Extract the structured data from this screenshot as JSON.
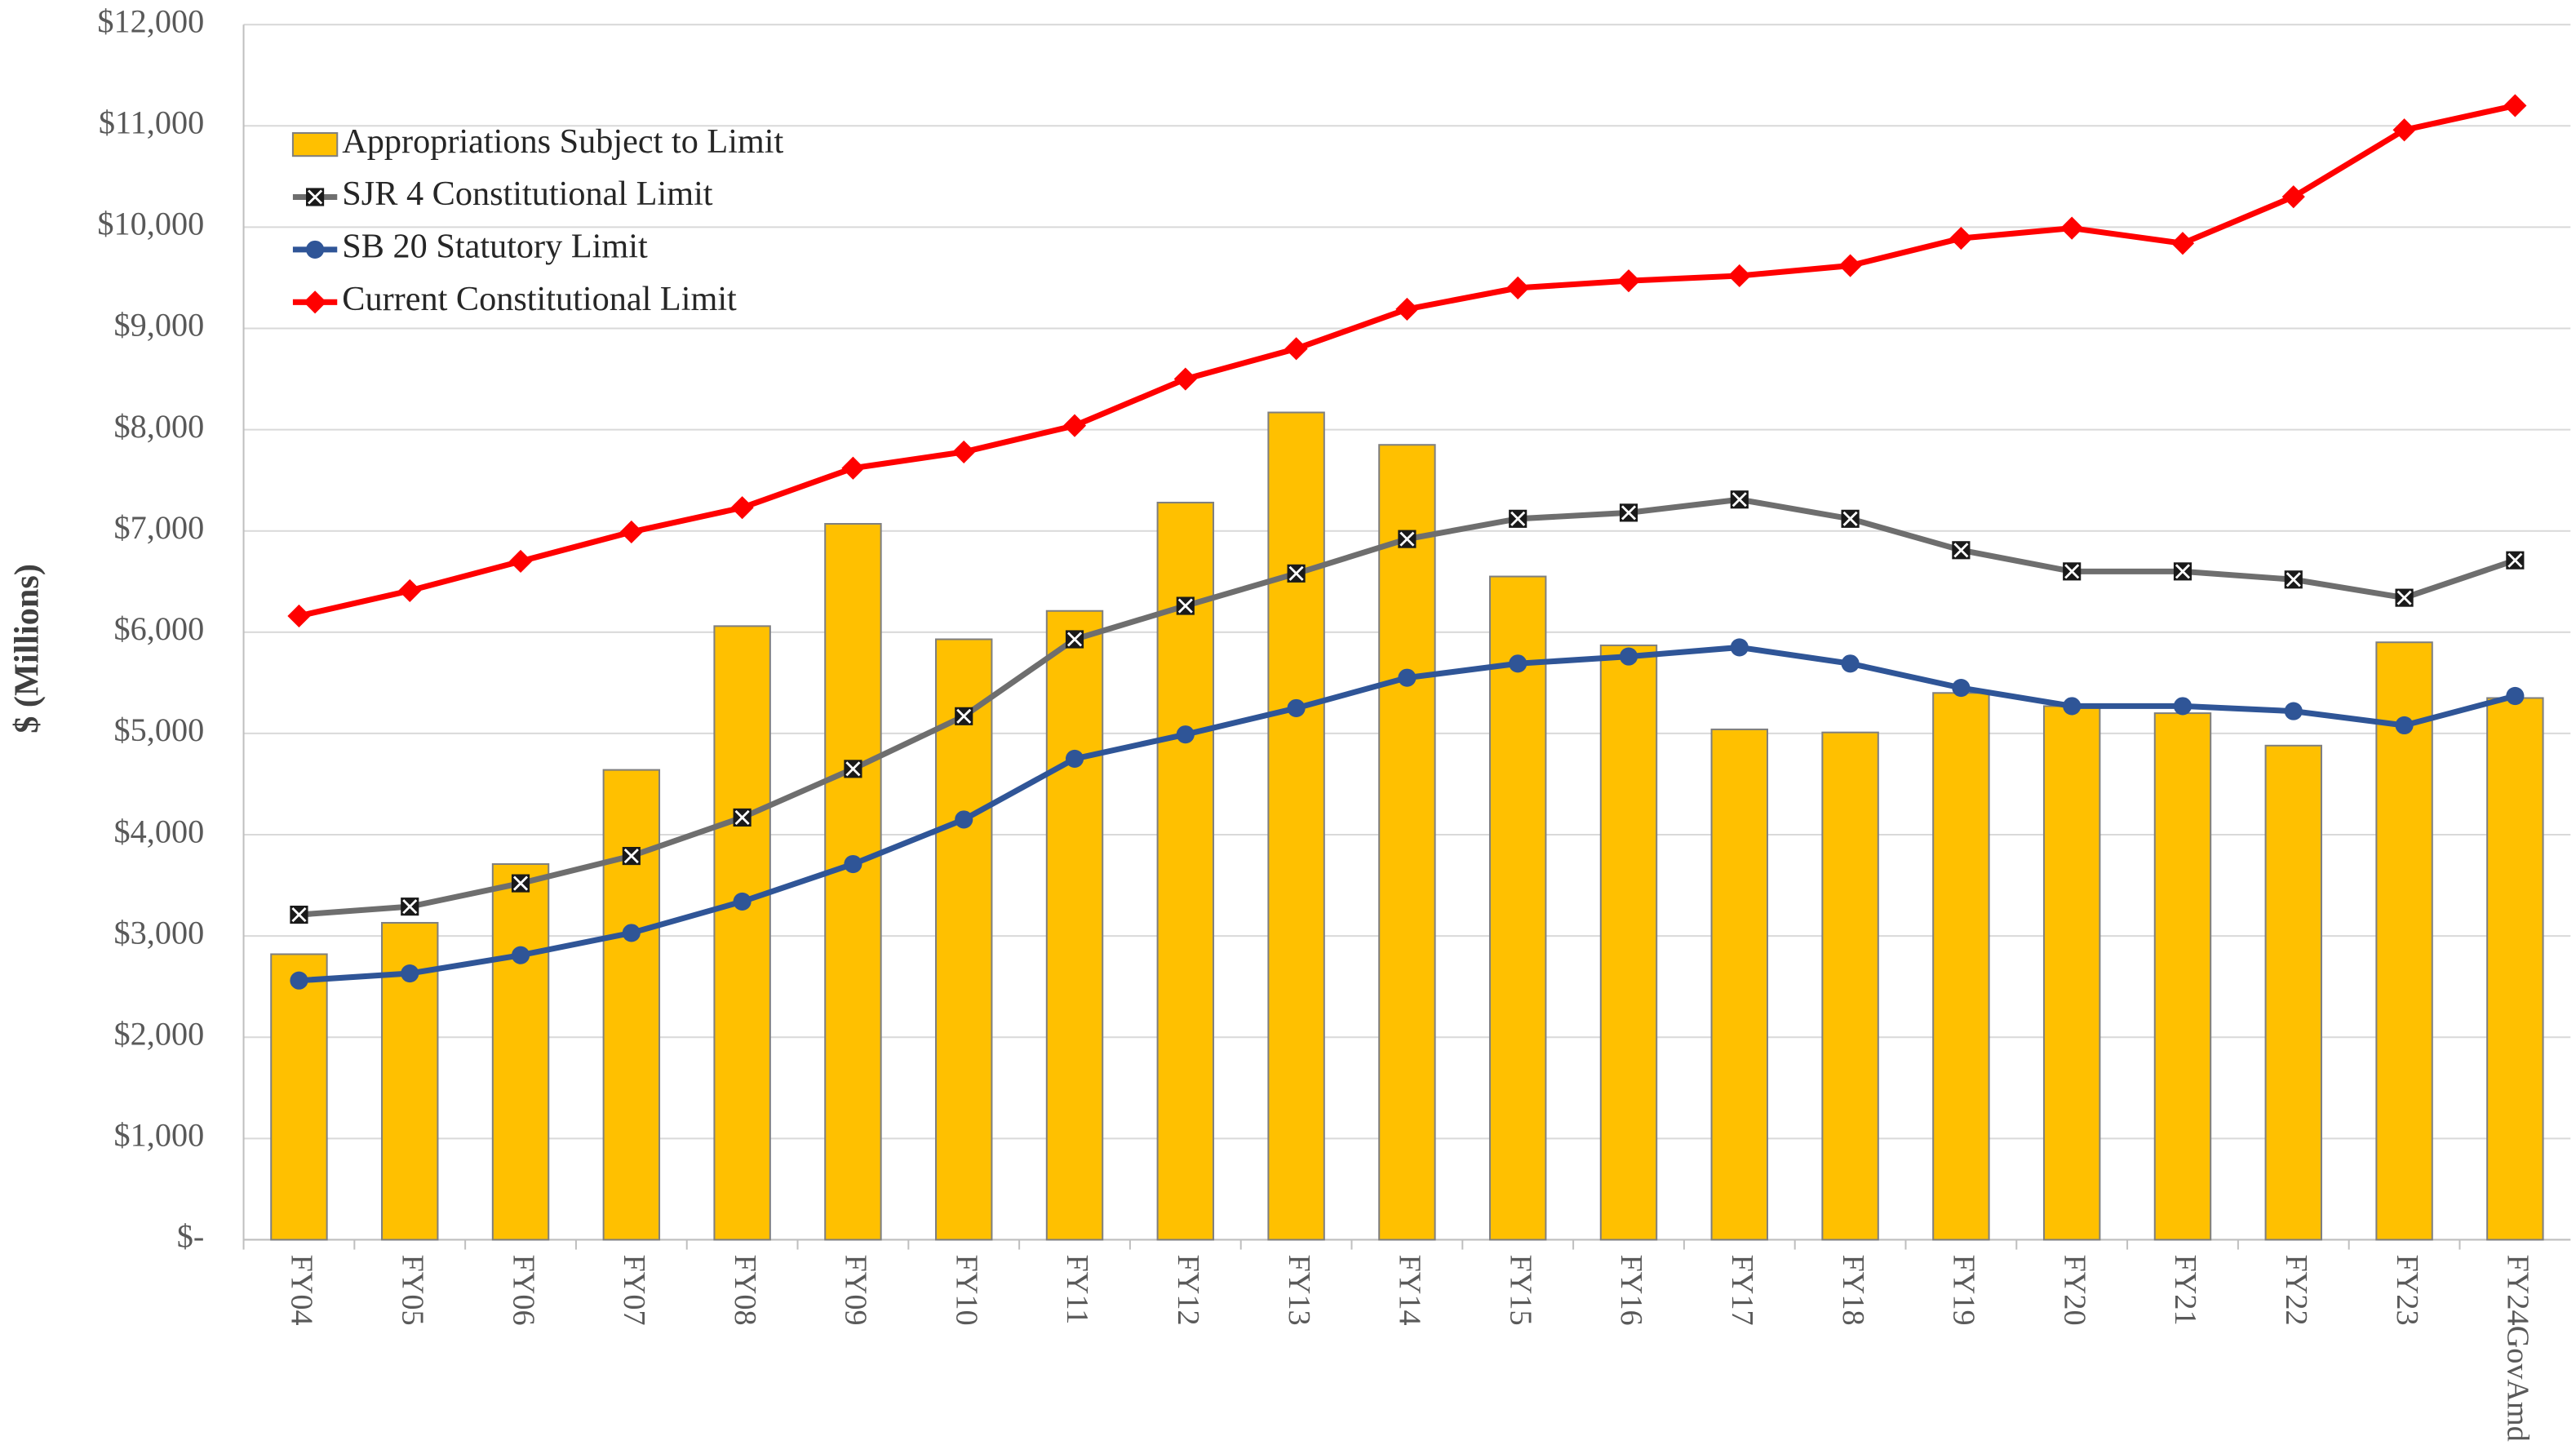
{
  "chart_data": {
    "type": "bar",
    "y_label": "$ (Millions)",
    "categories": [
      "FY04",
      "FY05",
      "FY06",
      "FY07",
      "FY08",
      "FY09",
      "FY10",
      "FY11",
      "FY12",
      "FY13",
      "FY14",
      "FY15",
      "FY16",
      "FY17",
      "FY18",
      "FY19",
      "FY20",
      "FY21",
      "FY22",
      "FY23",
      "FY24GovAmd"
    ],
    "series": [
      {
        "name": "Appropriations Subject to Limit",
        "type": "bar",
        "color": "#ffc000",
        "values": [
          2820,
          3130,
          3710,
          4640,
          6060,
          7070,
          5930,
          6210,
          7280,
          8170,
          7850,
          6550,
          5870,
          5040,
          5010,
          5400,
          5270,
          5200,
          4880,
          5900,
          5350
        ]
      },
      {
        "name": "SJR 4 Constitutional Limit",
        "type": "line",
        "marker": "x-square",
        "color": "#6e6e6e",
        "values": [
          3210,
          3290,
          3520,
          3790,
          4170,
          4650,
          5170,
          5930,
          6260,
          6580,
          6920,
          7120,
          7180,
          7310,
          7120,
          6810,
          6600,
          6600,
          6520,
          6340,
          6710
        ]
      },
      {
        "name": "SB 20 Statutory Limit",
        "type": "line",
        "marker": "circle",
        "color": "#2f5597",
        "values": [
          2560,
          2630,
          2810,
          3030,
          3340,
          3710,
          4150,
          4750,
          4990,
          5250,
          5550,
          5690,
          5760,
          5850,
          5690,
          5450,
          5270,
          5270,
          5220,
          5080,
          5370
        ]
      },
      {
        "name": "Current Constitutional Limit",
        "type": "line",
        "marker": "diamond",
        "color": "#ff0000",
        "values": [
          6160,
          6410,
          6700,
          6990,
          7230,
          7620,
          7780,
          8040,
          8500,
          8800,
          9190,
          9400,
          9470,
          9520,
          9620,
          9890,
          9990,
          9840,
          10300,
          10960,
          11200
        ]
      }
    ],
    "ylim": [
      0,
      12000
    ],
    "yticks": [
      {
        "value": 0,
        "label": "$-"
      },
      {
        "value": 1000,
        "label": "$1,000"
      },
      {
        "value": 2000,
        "label": "$2,000"
      },
      {
        "value": 3000,
        "label": "$3,000"
      },
      {
        "value": 4000,
        "label": "$4,000"
      },
      {
        "value": 5000,
        "label": "$5,000"
      },
      {
        "value": 6000,
        "label": "$6,000"
      },
      {
        "value": 7000,
        "label": "$7,000"
      },
      {
        "value": 8000,
        "label": "$8,000"
      },
      {
        "value": 9000,
        "label": "$9,000"
      },
      {
        "value": 10000,
        "label": "$10,000"
      },
      {
        "value": 11000,
        "label": "$11,000"
      },
      {
        "value": 12000,
        "label": "$12,000"
      }
    ],
    "grid": true,
    "legend": "upper left"
  }
}
